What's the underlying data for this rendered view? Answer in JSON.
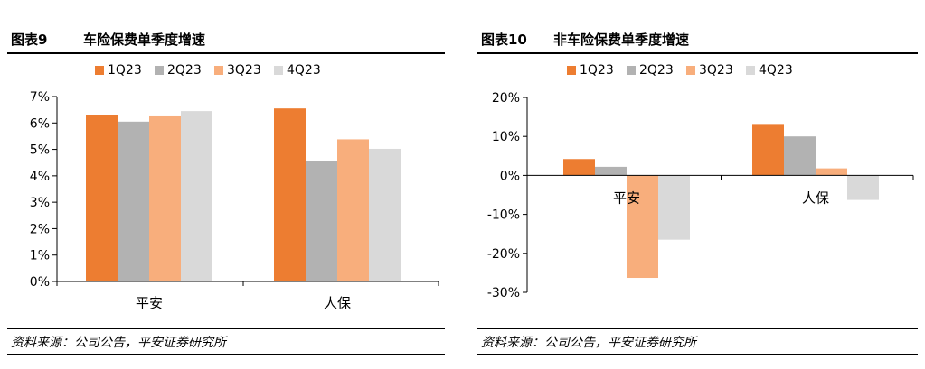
{
  "charts": [
    {
      "figure_number": "图表9",
      "title": "车险保费单季度增速",
      "source": "资料来源：公司公告，平安证券研究所"
    },
    {
      "figure_number": "图表10",
      "title": "非车险保费单季度增速",
      "source": "资料来源：公司公告，平安证券研究所"
    }
  ],
  "chart_data": [
    {
      "type": "bar",
      "title": "车险保费单季度增速",
      "categories": [
        "平安",
        "人保"
      ],
      "series": [
        {
          "name": "1Q23",
          "color": "#ED7D31",
          "values": [
            6.3,
            6.55
          ]
        },
        {
          "name": "2Q23",
          "color": "#B2B2B2",
          "values": [
            6.05,
            4.55
          ]
        },
        {
          "name": "3Q23",
          "color": "#F8AE7C",
          "values": [
            6.25,
            5.38
          ]
        },
        {
          "name": "4Q23",
          "color": "#D9D9D9",
          "values": [
            6.45,
            5.02
          ]
        }
      ],
      "ylim": [
        0,
        7
      ],
      "yticks": [
        0,
        1,
        2,
        3,
        4,
        5,
        6,
        7
      ],
      "ytick_labels": [
        "0%",
        "1%",
        "2%",
        "3%",
        "4%",
        "5%",
        "6%",
        "7%"
      ],
      "grid": false,
      "legend": "top"
    },
    {
      "type": "bar",
      "title": "非车险保费单季度增速",
      "categories": [
        "平安",
        "人保"
      ],
      "series": [
        {
          "name": "1Q23",
          "color": "#ED7D31",
          "values": [
            4.2,
            13.2
          ]
        },
        {
          "name": "2Q23",
          "color": "#B2B2B2",
          "values": [
            2.2,
            10.0
          ]
        },
        {
          "name": "3Q23",
          "color": "#F8AE7C",
          "values": [
            -26.3,
            1.8
          ]
        },
        {
          "name": "4Q23",
          "color": "#D9D9D9",
          "values": [
            -16.5,
            -6.3
          ]
        }
      ],
      "ylim": [
        -30,
        20
      ],
      "yticks": [
        -30,
        -20,
        -10,
        0,
        10,
        20
      ],
      "ytick_labels": [
        "-30%",
        "-20%",
        "-10%",
        "0%",
        "10%",
        "20%"
      ],
      "grid": false,
      "legend": "top"
    }
  ]
}
